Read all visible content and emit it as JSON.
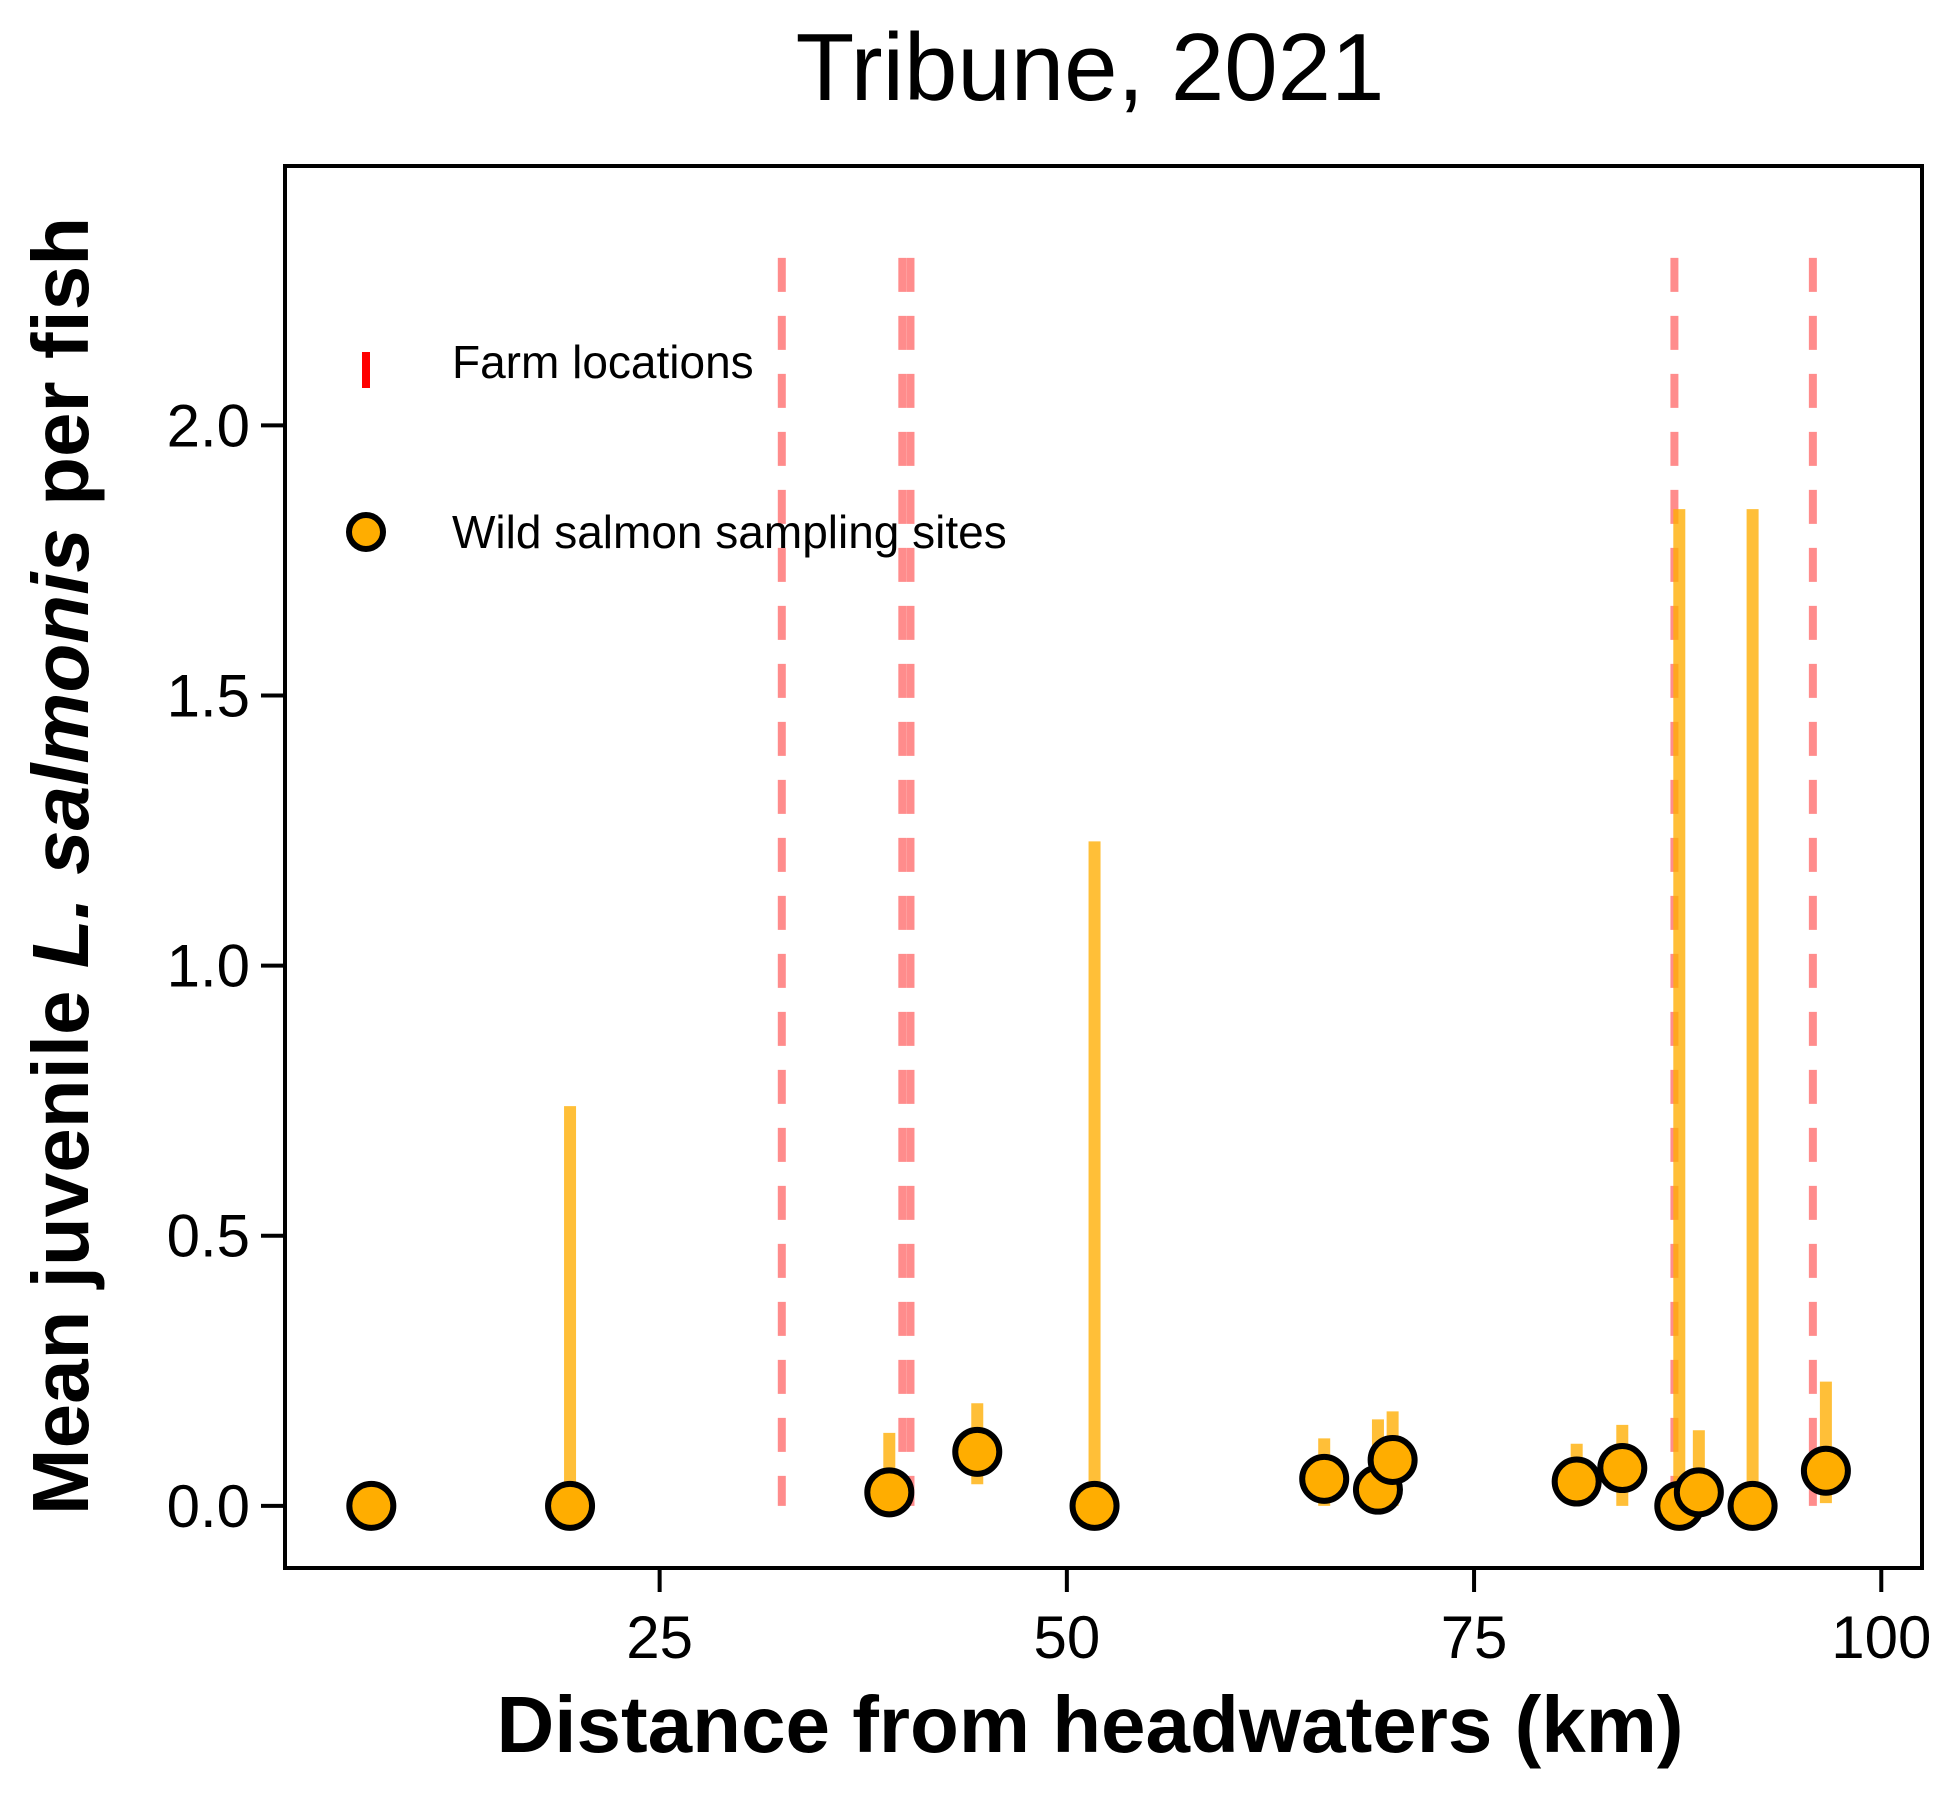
{
  "chart_data": {
    "type": "scatter",
    "title": "Tribune, 2021",
    "xlabel": "Distance from headwaters (km)",
    "ylabel": {
      "prefix": "Mean juvenile ",
      "italic": "L. salmonis",
      "suffix": "  per fish"
    },
    "xlim": [
      2,
      102.5
    ],
    "ylim": [
      -0.115,
      2.48
    ],
    "xticks": [
      {
        "value": 25,
        "label": "25"
      },
      {
        "value": 50,
        "label": "50"
      },
      {
        "value": 75,
        "label": "75"
      },
      {
        "value": 100,
        "label": "100"
      }
    ],
    "yticks": [
      {
        "value": 0.0,
        "label": "0.0"
      },
      {
        "value": 0.5,
        "label": "0.5"
      },
      {
        "value": 1.0,
        "label": "1.0"
      },
      {
        "value": 1.5,
        "label": "1.5"
      },
      {
        "value": 2.0,
        "label": "2.0"
      }
    ],
    "farm_locations": {
      "name": "Farm locations",
      "color": "#ff0000",
      "x": [
        32.5,
        39.9,
        40.4,
        87.3,
        95.8
      ]
    },
    "sampling_sites": {
      "name": "Wild salmon sampling sites",
      "color": "#ffad00",
      "errorbar_color": "#ffad00",
      "points": [
        {
          "x": 7.3,
          "y": 0.0,
          "lo": 0.0,
          "hi": 0.0
        },
        {
          "x": 19.5,
          "y": 0.0,
          "lo": 0.0,
          "hi": 0.74
        },
        {
          "x": 39.1,
          "y": 0.025,
          "lo": 0.0,
          "hi": 0.135
        },
        {
          "x": 44.5,
          "y": 0.1,
          "lo": 0.04,
          "hi": 0.19
        },
        {
          "x": 51.7,
          "y": 0.0,
          "lo": 0.0,
          "hi": 1.23
        },
        {
          "x": 65.8,
          "y": 0.05,
          "lo": 0.0,
          "hi": 0.125
        },
        {
          "x": 69.1,
          "y": 0.03,
          "lo": 0.0,
          "hi": 0.16
        },
        {
          "x": 70.0,
          "y": 0.085,
          "lo": 0.0,
          "hi": 0.175
        },
        {
          "x": 81.3,
          "y": 0.045,
          "lo": 0.0,
          "hi": 0.115
        },
        {
          "x": 84.1,
          "y": 0.07,
          "lo": 0.0,
          "hi": 0.15
        },
        {
          "x": 87.6,
          "y": 0.0,
          "lo": 0.0,
          "hi": 1.845
        },
        {
          "x": 88.8,
          "y": 0.025,
          "lo": 0.0,
          "hi": 0.14
        },
        {
          "x": 92.1,
          "y": 0.0,
          "lo": 0.0,
          "hi": 1.845
        },
        {
          "x": 96.6,
          "y": 0.065,
          "lo": 0.005,
          "hi": 0.23
        }
      ]
    },
    "legend_position": "top-left",
    "grid": false
  }
}
